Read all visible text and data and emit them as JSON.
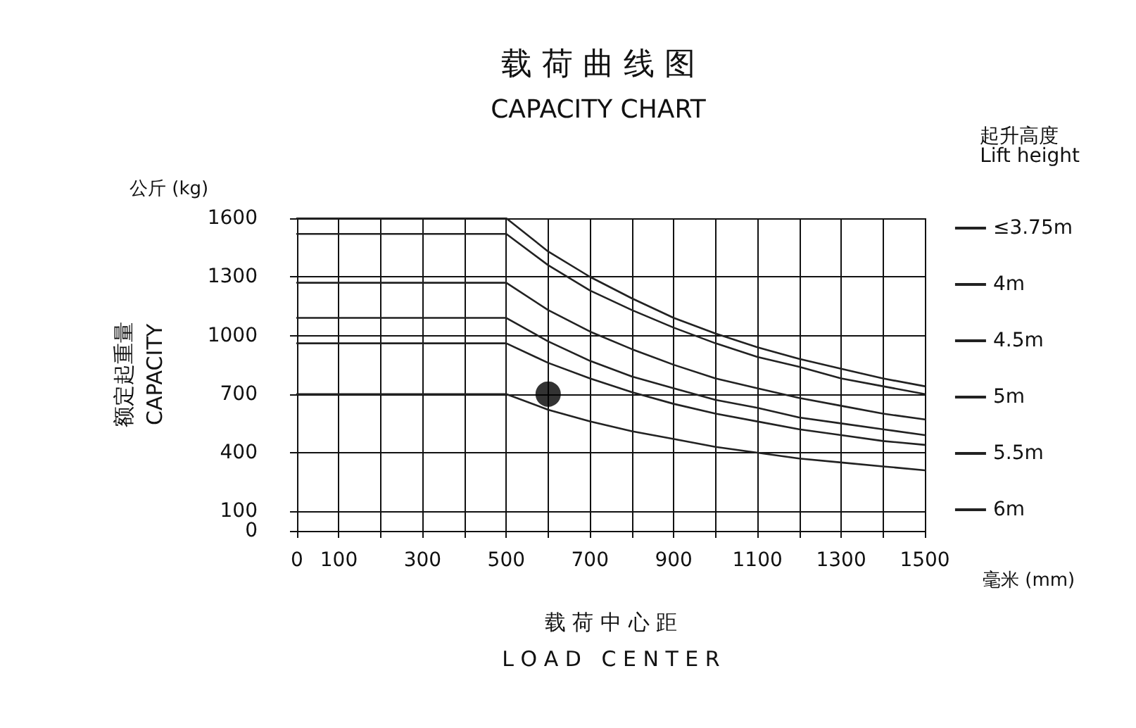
{
  "chart_data": {
    "type": "line",
    "title": "载 荷 曲 线 图",
    "subtitle": "CAPACITY CHART",
    "xlabel": "载 荷 中 心 距\nL O A D   C E N T E R",
    "ylabel": "额定起重量\nCAPACITY",
    "legend_title": "起升高度\nLift height",
    "annotations": [
      "公斤 (kg)",
      "毫米 (mm)"
    ],
    "x": [
      0,
      500,
      600,
      700,
      800,
      900,
      1000,
      1100,
      1200,
      1300,
      1400,
      1500
    ],
    "series": [
      {
        "name": "≤3.75m",
        "color": "#222222",
        "values": [
          1600,
          1600,
          1430,
          1300,
          1190,
          1090,
          1010,
          940,
          880,
          830,
          780,
          740
        ]
      },
      {
        "name": "4m",
        "color": "#222222",
        "values": [
          1520,
          1520,
          1360,
          1230,
          1130,
          1040,
          960,
          890,
          840,
          780,
          740,
          700
        ]
      },
      {
        "name": "4.5m",
        "color": "#222222",
        "values": [
          1270,
          1270,
          1130,
          1020,
          930,
          850,
          780,
          730,
          680,
          640,
          600,
          570
        ]
      },
      {
        "name": "5m",
        "color": "#222222",
        "values": [
          1090,
          1090,
          970,
          870,
          790,
          730,
          670,
          630,
          580,
          550,
          520,
          490
        ]
      },
      {
        "name": "5.5m",
        "color": "#222222",
        "values": [
          960,
          960,
          860,
          780,
          710,
          650,
          600,
          560,
          520,
          490,
          460,
          440
        ]
      },
      {
        "name": "6m",
        "color": "#222222",
        "values": [
          700,
          700,
          620,
          560,
          510,
          470,
          430,
          400,
          370,
          350,
          330,
          310
        ]
      },
      {
        "type": "scatter",
        "marker": "circle",
        "color": "#000000",
        "x": [
          600
        ],
        "values": [
          700
        ]
      }
    ],
    "xlim": [
      0,
      1500
    ],
    "xticks": [
      0,
      100,
      {
        "value": 200,
        "label": null
      },
      300,
      {
        "value": 400,
        "label": null
      },
      500,
      {
        "value": 600,
        "label": null
      },
      700,
      {
        "value": 800,
        "label": null
      },
      900,
      {
        "value": 1000,
        "label": null
      },
      1100,
      {
        "value": 1200,
        "label": null
      },
      1300,
      {
        "value": 1400,
        "label": null
      },
      1500
    ],
    "ylim": [
      0,
      1600
    ],
    "yticks": [
      0,
      100,
      400,
      700,
      1000,
      1300,
      1600
    ],
    "grid": true,
    "legend": "right",
    "marker": "none",
    "line_style": "solid"
  }
}
